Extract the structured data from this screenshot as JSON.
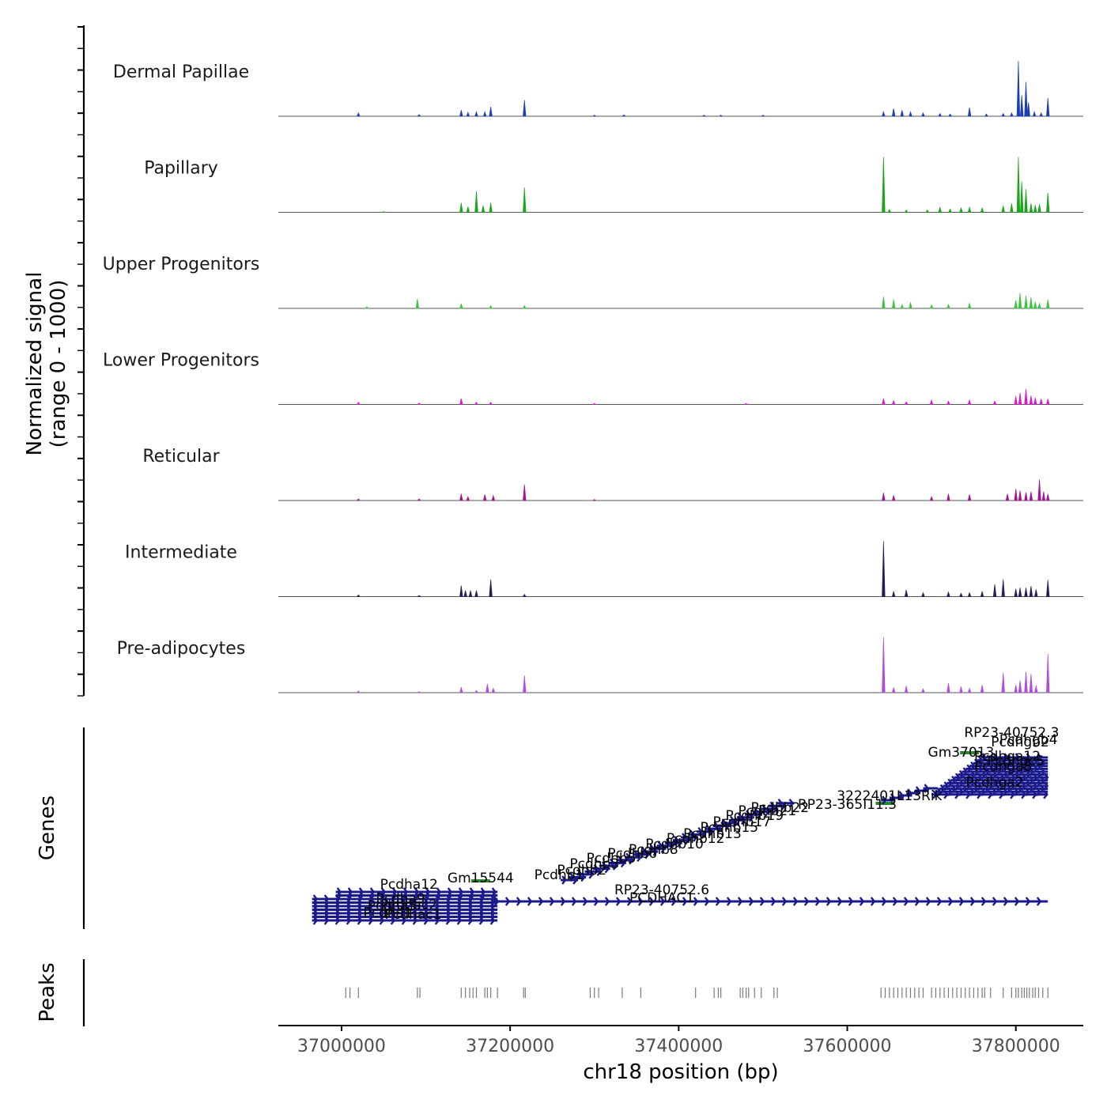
{
  "chart_data": {
    "type": "genome-browser",
    "chromosome": "chr18",
    "xlim": [
      36925000,
      37880000
    ],
    "xlabel": "chr18 position (bp)",
    "x_ticks": [
      37000000,
      37200000,
      37400000,
      37600000,
      37800000
    ],
    "x_tick_labels": [
      "37000000",
      "37200000",
      "37400000",
      "37600000",
      "37800000"
    ],
    "ylabel_line1": "Normalized signal",
    "ylabel_line2": "(range 0 - 1000)",
    "signal_range": [
      0,
      1000
    ],
    "tracks": [
      {
        "name": "Dermal Papillae",
        "color": "#1f3fb0",
        "peaks": [
          [
            37020000,
            60
          ],
          [
            37092000,
            30
          ],
          [
            37142000,
            110
          ],
          [
            37150000,
            70
          ],
          [
            37160000,
            80
          ],
          [
            37170000,
            80
          ],
          [
            37177000,
            170
          ],
          [
            37217000,
            290
          ],
          [
            37300000,
            20
          ],
          [
            37335000,
            25
          ],
          [
            37430000,
            20
          ],
          [
            37450000,
            20
          ],
          [
            37500000,
            20
          ],
          [
            37643000,
            80
          ],
          [
            37655000,
            140
          ],
          [
            37665000,
            110
          ],
          [
            37675000,
            80
          ],
          [
            37690000,
            60
          ],
          [
            37710000,
            50
          ],
          [
            37722000,
            40
          ],
          [
            37745000,
            160
          ],
          [
            37765000,
            40
          ],
          [
            37785000,
            50
          ],
          [
            37795000,
            60
          ],
          [
            37803000,
            1000
          ],
          [
            37807000,
            380
          ],
          [
            37812000,
            620
          ],
          [
            37815000,
            250
          ],
          [
            37822000,
            80
          ],
          [
            37830000,
            60
          ],
          [
            37838000,
            330
          ]
        ]
      },
      {
        "name": "Papillary",
        "color": "#1aa61a",
        "peaks": [
          [
            37050000,
            15
          ],
          [
            37142000,
            170
          ],
          [
            37150000,
            100
          ],
          [
            37160000,
            380
          ],
          [
            37168000,
            120
          ],
          [
            37177000,
            170
          ],
          [
            37217000,
            450
          ],
          [
            37643000,
            1000
          ],
          [
            37650000,
            50
          ],
          [
            37670000,
            40
          ],
          [
            37695000,
            40
          ],
          [
            37710000,
            90
          ],
          [
            37722000,
            60
          ],
          [
            37735000,
            80
          ],
          [
            37745000,
            90
          ],
          [
            37760000,
            80
          ],
          [
            37785000,
            120
          ],
          [
            37795000,
            160
          ],
          [
            37803000,
            1000
          ],
          [
            37807000,
            560
          ],
          [
            37812000,
            420
          ],
          [
            37818000,
            160
          ],
          [
            37823000,
            130
          ],
          [
            37828000,
            150
          ],
          [
            37838000,
            350
          ]
        ]
      },
      {
        "name": "Upper Progenitors",
        "color": "#3cc33c",
        "peaks": [
          [
            37030000,
            30
          ],
          [
            37090000,
            170
          ],
          [
            37142000,
            80
          ],
          [
            37177000,
            50
          ],
          [
            37217000,
            50
          ],
          [
            37643000,
            210
          ],
          [
            37655000,
            160
          ],
          [
            37665000,
            70
          ],
          [
            37675000,
            110
          ],
          [
            37700000,
            60
          ],
          [
            37720000,
            70
          ],
          [
            37745000,
            90
          ],
          [
            37800000,
            150
          ],
          [
            37805000,
            280
          ],
          [
            37812000,
            230
          ],
          [
            37818000,
            200
          ],
          [
            37823000,
            120
          ],
          [
            37828000,
            90
          ],
          [
            37838000,
            160
          ]
        ]
      },
      {
        "name": "Lower Progenitors",
        "color": "#d21fc4",
        "peaks": [
          [
            37020000,
            40
          ],
          [
            37092000,
            25
          ],
          [
            37142000,
            110
          ],
          [
            37160000,
            40
          ],
          [
            37177000,
            40
          ],
          [
            37300000,
            20
          ],
          [
            37480000,
            20
          ],
          [
            37643000,
            110
          ],
          [
            37655000,
            70
          ],
          [
            37670000,
            50
          ],
          [
            37700000,
            80
          ],
          [
            37720000,
            60
          ],
          [
            37745000,
            80
          ],
          [
            37775000,
            60
          ],
          [
            37800000,
            150
          ],
          [
            37805000,
            210
          ],
          [
            37812000,
            280
          ],
          [
            37818000,
            160
          ],
          [
            37823000,
            120
          ],
          [
            37830000,
            100
          ],
          [
            37838000,
            100
          ]
        ]
      },
      {
        "name": "Reticular",
        "color": "#a0168e",
        "peaks": [
          [
            37020000,
            30
          ],
          [
            37092000,
            30
          ],
          [
            37142000,
            120
          ],
          [
            37150000,
            70
          ],
          [
            37170000,
            110
          ],
          [
            37180000,
            90
          ],
          [
            37217000,
            290
          ],
          [
            37300000,
            20
          ],
          [
            37643000,
            140
          ],
          [
            37655000,
            90
          ],
          [
            37700000,
            70
          ],
          [
            37720000,
            120
          ],
          [
            37745000,
            110
          ],
          [
            37790000,
            120
          ],
          [
            37800000,
            210
          ],
          [
            37805000,
            180
          ],
          [
            37812000,
            150
          ],
          [
            37818000,
            160
          ],
          [
            37828000,
            380
          ],
          [
            37833000,
            160
          ],
          [
            37838000,
            120
          ]
        ]
      },
      {
        "name": "Intermediate",
        "color": "#2b1a5a",
        "peaks": [
          [
            37020000,
            30
          ],
          [
            37092000,
            20
          ],
          [
            37142000,
            200
          ],
          [
            37147000,
            110
          ],
          [
            37153000,
            110
          ],
          [
            37160000,
            110
          ],
          [
            37177000,
            310
          ],
          [
            37217000,
            40
          ],
          [
            37643000,
            1000
          ],
          [
            37655000,
            90
          ],
          [
            37670000,
            120
          ],
          [
            37690000,
            70
          ],
          [
            37720000,
            80
          ],
          [
            37735000,
            60
          ],
          [
            37745000,
            70
          ],
          [
            37760000,
            90
          ],
          [
            37775000,
            220
          ],
          [
            37785000,
            310
          ],
          [
            37800000,
            140
          ],
          [
            37805000,
            160
          ],
          [
            37812000,
            160
          ],
          [
            37818000,
            190
          ],
          [
            37824000,
            130
          ],
          [
            37838000,
            300
          ]
        ]
      },
      {
        "name": "Pre-adipocytes",
        "color": "#b14ce0",
        "peaks": [
          [
            37020000,
            30
          ],
          [
            37092000,
            20
          ],
          [
            37142000,
            100
          ],
          [
            37160000,
            40
          ],
          [
            37173000,
            160
          ],
          [
            37180000,
            80
          ],
          [
            37217000,
            310
          ],
          [
            37643000,
            1000
          ],
          [
            37655000,
            90
          ],
          [
            37670000,
            120
          ],
          [
            37690000,
            70
          ],
          [
            37720000,
            170
          ],
          [
            37735000,
            110
          ],
          [
            37745000,
            80
          ],
          [
            37760000,
            140
          ],
          [
            37785000,
            360
          ],
          [
            37800000,
            140
          ],
          [
            37805000,
            220
          ],
          [
            37812000,
            380
          ],
          [
            37818000,
            340
          ],
          [
            37824000,
            130
          ],
          [
            37838000,
            700
          ]
        ]
      }
    ],
    "genes_label": "Genes",
    "gene_labels": [
      {
        "text": "RP23-40752.3",
        "x": 37795000,
        "row": 0
      },
      {
        "text": "Pcdhgb2",
        "x": 37805000,
        "row": 1
      },
      {
        "text": "Pcdhgb4",
        "x": 37815000,
        "row": 2
      },
      {
        "text": "Gm37013",
        "x": 37735000,
        "row": 3
      },
      {
        "text": "Pcdhga12",
        "x": 37790000,
        "row": 4
      },
      {
        "text": "Pcdhgc5",
        "x": 37800000,
        "row": 5
      },
      {
        "text": "Pcdhga8",
        "x": 37785000,
        "row": 6
      },
      {
        "text": "Pcdhga2",
        "x": 37775000,
        "row": 9
      },
      {
        "text": "3222401L13Rik",
        "x": 37650000,
        "row": 10
      },
      {
        "text": "RP23-365I11.3",
        "x": 37600000,
        "row": 11
      },
      {
        "text": "Pcdhb22",
        "x": 37520000,
        "row": 12
      },
      {
        "text": "Pcdhb21",
        "x": 37505000,
        "row": 13
      },
      {
        "text": "Pcdhb19",
        "x": 37490000,
        "row": 14
      },
      {
        "text": "Pcdhb17",
        "x": 37475000,
        "row": 15
      },
      {
        "text": "Pcdhb15",
        "x": 37460000,
        "row": 16
      },
      {
        "text": "Pcdhb13",
        "x": 37440000,
        "row": 17
      },
      {
        "text": "Pcdhb12",
        "x": 37420000,
        "row": 18
      },
      {
        "text": "Pcdhb10",
        "x": 37395000,
        "row": 19
      },
      {
        "text": "Pcdhb8",
        "x": 37370000,
        "row": 20
      },
      {
        "text": "Pcdhb6",
        "x": 37345000,
        "row": 21
      },
      {
        "text": "Pcdhb5",
        "x": 37320000,
        "row": 22
      },
      {
        "text": "Pcdhb3",
        "x": 37300000,
        "row": 23
      },
      {
        "text": "Pcdhb2",
        "x": 37285000,
        "row": 24
      },
      {
        "text": "Pcdhb1",
        "x": 37258000,
        "row": 25
      },
      {
        "text": "Gm15544",
        "x": 37165000,
        "row": 26
      },
      {
        "text": "Pcdha12",
        "x": 37080000,
        "row": 27
      },
      {
        "text": "Pcdha9",
        "x": 37070000,
        "row": 28
      },
      {
        "text": "Pcdha5",
        "x": 37060000,
        "row": 29
      },
      {
        "text": "Pcdha1",
        "x": 37055000,
        "row": 30
      },
      {
        "text": "RP23-40752.6",
        "x": 37380000,
        "row": 31
      },
      {
        "text": "Pcdhac2",
        "x": 37080000,
        "row": 32
      },
      {
        "text": "PCDHAC1",
        "x": 37380000,
        "row": 33
      },
      {
        "text": "Pcdhac1",
        "x": 37085000,
        "row": 34
      }
    ],
    "peaks_label": "Peaks",
    "peak_positions": [
      37005000,
      37010000,
      37020000,
      37090000,
      37093000,
      37142000,
      37147000,
      37152000,
      37156000,
      37160000,
      37170000,
      37173000,
      37177000,
      37185000,
      37216000,
      37218000,
      37295000,
      37300000,
      37305000,
      37333000,
      37355000,
      37420000,
      37442000,
      37447000,
      37450000,
      37473000,
      37476000,
      37480000,
      37483000,
      37490000,
      37498000,
      37513000,
      37517000,
      37640000,
      37645000,
      37650000,
      37655000,
      37660000,
      37665000,
      37670000,
      37675000,
      37680000,
      37685000,
      37690000,
      37700000,
      37705000,
      37710000,
      37715000,
      37720000,
      37725000,
      37730000,
      37735000,
      37740000,
      37745000,
      37750000,
      37755000,
      37760000,
      37763000,
      37770000,
      37785000,
      37795000,
      37800000,
      37803000,
      37807000,
      37810000,
      37813000,
      37816000,
      37820000,
      37823000,
      37827000,
      37832000,
      37838000
    ]
  }
}
